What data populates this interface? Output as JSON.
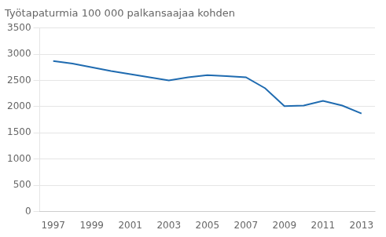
{
  "chart_data": {
    "type": "line",
    "title": "Työtapaturmia 100 000 palkansaajaa kohden",
    "x": [
      1997,
      1998,
      1999,
      2000,
      2001,
      2002,
      2003,
      2004,
      2005,
      2006,
      2007,
      2008,
      2009,
      2010,
      2011,
      2012,
      2013
    ],
    "values": [
      2870,
      2820,
      2750,
      2680,
      2620,
      2560,
      2500,
      2560,
      2600,
      2580,
      2560,
      2350,
      2010,
      2020,
      2110,
      2020,
      1870
    ],
    "color": "#1F6BB0",
    "xlim": [
      1996.3,
      2013.7
    ],
    "xticks": [
      1997,
      1999,
      2001,
      2003,
      2005,
      2007,
      2009,
      2011,
      2013
    ],
    "ylim": [
      0,
      3500
    ],
    "yticks": [
      0,
      500,
      1000,
      1500,
      2000,
      2500,
      3000,
      3500
    ],
    "grid": "y"
  }
}
